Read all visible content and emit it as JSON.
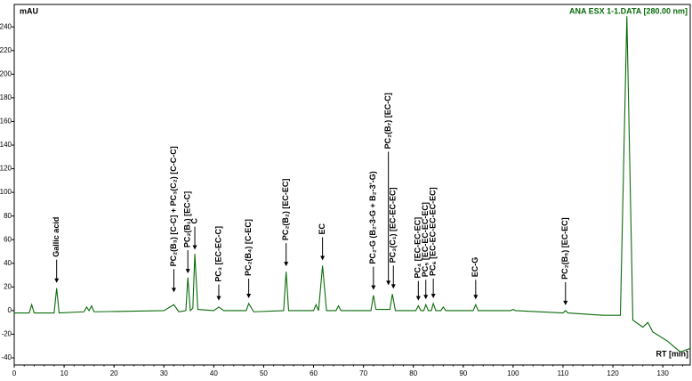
{
  "chart_data": {
    "type": "line",
    "y_label": "mAU",
    "x_label": "RT [min]",
    "x": [
      -1,
      3,
      3.5,
      4,
      8,
      8.5,
      9,
      14,
      14.5,
      15,
      15.5,
      16,
      30,
      32,
      33,
      34.4,
      34.8,
      35.3,
      35.8,
      36.2,
      36.8,
      40,
      41,
      42,
      46.5,
      47,
      48,
      54,
      54.5,
      55,
      60,
      60.5,
      61,
      61.8,
      62.6,
      64.5,
      65,
      65.5,
      71.5,
      72,
      72.5,
      75.3,
      75.8,
      76.4,
      80.5,
      81,
      81.5,
      82.1,
      82.5,
      83,
      83.6,
      84,
      84.5,
      85.5,
      86,
      86.5,
      92,
      92.5,
      93,
      99.5,
      100,
      100.5,
      110,
      110.5,
      111,
      118,
      121.5,
      122.8,
      124,
      126,
      127,
      128,
      131,
      133.5,
      135.5
    ],
    "series": [
      {
        "name": "ANA ESX 1-1.DATA [280.00 nm]",
        "color": "#0b6b0b",
        "values": [
          -2,
          -2,
          5,
          -2,
          -2,
          19,
          -2,
          -1,
          3,
          0,
          4,
          -1,
          0,
          5,
          -1,
          0,
          28,
          0,
          2,
          48,
          1,
          0,
          3,
          0,
          0,
          6,
          -1,
          0,
          33,
          0,
          0,
          5,
          0,
          38,
          0,
          0,
          4,
          0,
          0,
          13,
          1,
          1,
          14,
          0,
          0,
          4,
          0,
          0,
          5,
          0,
          0,
          6,
          0,
          0,
          3,
          0,
          0,
          5,
          0,
          0,
          1,
          0,
          -2,
          0,
          -2,
          -4,
          -4,
          249,
          -8,
          -14,
          -10,
          -18,
          -26,
          -35,
          -32
        ]
      }
    ],
    "xlim": [
      0,
      135.5
    ],
    "ylim": [
      -46,
      259
    ],
    "xticks": [
      0,
      10,
      20,
      30,
      40,
      50,
      60,
      70,
      80,
      90,
      100,
      110,
      120,
      130
    ],
    "yticks": [
      -40,
      -20,
      0,
      20,
      40,
      60,
      80,
      100,
      120,
      140,
      160,
      180,
      200,
      220,
      240
    ],
    "grid": false,
    "legend": "top-right",
    "annotations": [
      {
        "text": "Gallic acid",
        "x": 8.5,
        "y": 22
      },
      {
        "text": "PC₂(B₃) [C-C] + PC₃(C₂) [C-C-C]",
        "x": 32,
        "y": 14
      },
      {
        "text": "PC₂(B₁) [EC-C]",
        "x": 34.8,
        "y": 30
      },
      {
        "text": "C",
        "x": 36.2,
        "y": 50
      },
      {
        "text": "PC₃ [EC-EC-C]",
        "x": 41,
        "y": 7
      },
      {
        "text": "PC₂(B₄) [C-EC]",
        "x": 47,
        "y": 9
      },
      {
        "text": "PC₂(B₂) [EC-EC]",
        "x": 54.5,
        "y": 36
      },
      {
        "text": "EC",
        "x": 61.8,
        "y": 41
      },
      {
        "text": "PC₂-G (B₂-3-G + B₂-3'-G)",
        "x": 72,
        "y": 16
      },
      {
        "text": "PC₂(B₇) [EC-C]",
        "x": 75,
        "y": 20
      },
      {
        "text": "PC₃(C₁) [EC-EC-EC]",
        "x": 76,
        "y": 17
      },
      {
        "text": "PC₄ [EC-EC-EC]",
        "x": 81,
        "y": 7
      },
      {
        "text": "PC₅ [EC-EC-EC-EC]",
        "x": 82.5,
        "y": 8
      },
      {
        "text": "PC₆ [EC-EC-EC-EC-EC]",
        "x": 84,
        "y": 9
      },
      {
        "text": "EC-G",
        "x": 92.5,
        "y": 8
      },
      {
        "text": "PC₂(B₅) [EC-EC]",
        "x": 110.5,
        "y": 3
      }
    ]
  }
}
